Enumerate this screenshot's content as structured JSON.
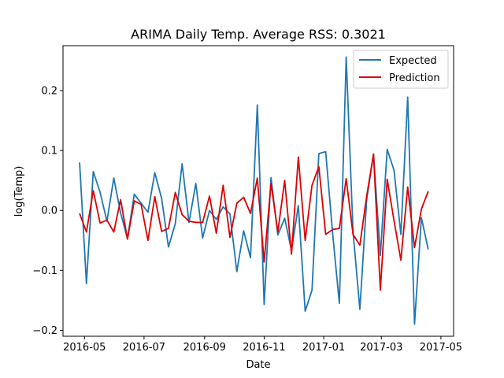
{
  "chart_data": {
    "type": "line",
    "title": "ARIMA Daily Temp. Average RSS: 0.3021",
    "xlabel": "Date",
    "ylabel": "log(Temp)",
    "xlim": [
      "2016-04-09",
      "2017-05-14"
    ],
    "ylim": [
      -0.21,
      0.275
    ],
    "x_ticks": [
      "2016-05",
      "2016-07",
      "2016-09",
      "2016-11",
      "2017-01",
      "2017-03",
      "2017-05"
    ],
    "y_ticks": [
      -0.2,
      -0.1,
      0.0,
      0.1,
      0.2
    ],
    "y_tick_labels": [
      "−0.2",
      "−0.1",
      "0.0",
      "0.1",
      "0.2"
    ],
    "grid": false,
    "legend_position": "top-right",
    "x": [
      "2016-04-26",
      "2016-05-03",
      "2016-05-10",
      "2016-05-17",
      "2016-05-24",
      "2016-05-31",
      "2016-06-07",
      "2016-06-14",
      "2016-06-21",
      "2016-06-28",
      "2016-07-05",
      "2016-07-12",
      "2016-07-19",
      "2016-07-26",
      "2016-08-02",
      "2016-08-09",
      "2016-08-16",
      "2016-08-23",
      "2016-08-30",
      "2016-09-06",
      "2016-09-13",
      "2016-09-20",
      "2016-09-27",
      "2016-10-04",
      "2016-10-11",
      "2016-10-18",
      "2016-10-25",
      "2016-11-01",
      "2016-11-08",
      "2016-11-15",
      "2016-11-22",
      "2016-11-29",
      "2016-12-06",
      "2016-12-13",
      "2016-12-20",
      "2016-12-27",
      "2017-01-03",
      "2017-01-10",
      "2017-01-17",
      "2017-01-24",
      "2017-01-31",
      "2017-02-07",
      "2017-02-14",
      "2017-02-21",
      "2017-02-28",
      "2017-03-07",
      "2017-03-14",
      "2017-03-21",
      "2017-03-28",
      "2017-04-04",
      "2017-04-11",
      "2017-04-18"
    ],
    "series": [
      {
        "name": "Expected",
        "color": "#1f77b4",
        "values": [
          0.08,
          -0.122,
          0.065,
          0.03,
          -0.018,
          0.054,
          -0.004,
          -0.047,
          0.027,
          0.012,
          -0.003,
          0.063,
          0.02,
          -0.061,
          -0.022,
          0.078,
          -0.02,
          0.045,
          -0.046,
          0.0,
          -0.015,
          0.006,
          -0.006,
          -0.102,
          -0.034,
          -0.079,
          0.176,
          -0.157,
          0.055,
          -0.041,
          -0.013,
          -0.067,
          0.008,
          -0.168,
          -0.133,
          0.095,
          0.098,
          -0.036,
          -0.155,
          0.256,
          -0.035,
          -0.165,
          0.018,
          0.094,
          -0.075,
          0.102,
          0.067,
          -0.04,
          0.189,
          -0.19,
          -0.012,
          -0.065
        ]
      },
      {
        "name": "Prediction",
        "color": "#dd0000",
        "values": [
          -0.005,
          -0.036,
          0.033,
          -0.021,
          -0.016,
          -0.036,
          0.018,
          -0.048,
          0.016,
          0.01,
          -0.05,
          0.023,
          -0.035,
          -0.03,
          0.03,
          -0.007,
          -0.018,
          -0.02,
          -0.02,
          0.024,
          -0.038,
          0.042,
          -0.045,
          0.012,
          0.022,
          -0.005,
          0.054,
          -0.086,
          0.045,
          -0.036,
          0.05,
          -0.073,
          0.089,
          -0.05,
          0.042,
          0.073,
          -0.04,
          -0.032,
          -0.03,
          0.053,
          -0.04,
          -0.058,
          0.024,
          0.094,
          -0.133,
          0.052,
          -0.017,
          -0.083,
          0.039,
          -0.062,
          0.002,
          0.032
        ]
      }
    ]
  }
}
